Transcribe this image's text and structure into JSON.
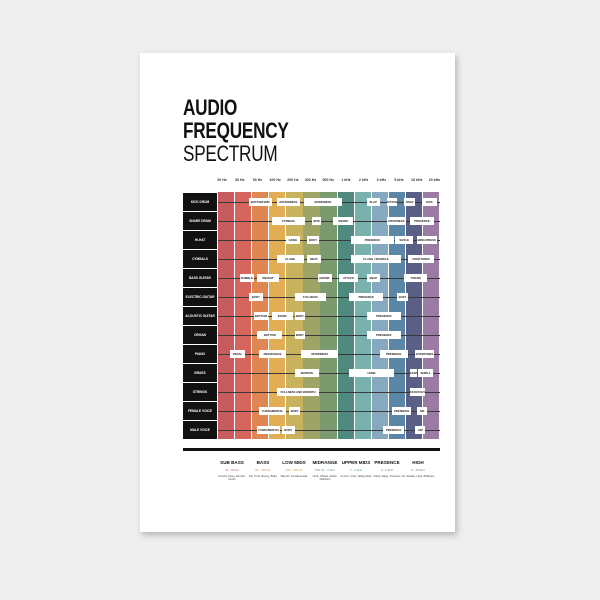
{
  "title": {
    "line1": "AUDIO",
    "line2": "FREQUENCY",
    "line3": "SPECTRUM"
  },
  "ticks": [
    "20 Hz",
    "30 Hz",
    "50 Hz",
    "100 Hz",
    "200 Hz",
    "300 Hz",
    "500 Hz",
    "1 kHz",
    "2 kHz",
    "3 kHz",
    "5 kHz",
    "10 kHz",
    "20 kHz"
  ],
  "tick_values_hz": [
    20,
    30,
    50,
    100,
    200,
    300,
    500,
    1000,
    2000,
    3000,
    5000,
    10000,
    20000
  ],
  "stripe_colors": [
    "#c95b5e",
    "#d6665c",
    "#de8752",
    "#e1ae55",
    "#c8b25e",
    "#9ea466",
    "#7b9a6e",
    "#4e8a7e",
    "#79b1ad",
    "#86a9bf",
    "#5b86a6",
    "#5a5f86",
    "#9b7aa3"
  ],
  "rows": [
    {
      "label": "Kick Drum",
      "blocks": [
        {
          "text": "Bottom End",
          "from": 39,
          "to": 87
        },
        {
          "text": "Roundness",
          "from": 107,
          "to": 236
        },
        {
          "text": "Muddiness",
          "from": 256,
          "to": 870
        },
        {
          "text": "Slap",
          "from": 2160,
          "to": 2880
        },
        {
          "text": "Attack",
          "from": 3500,
          "to": 4740
        },
        {
          "text": "Snap",
          "from": 6150,
          "to": 9350
        },
        {
          "text": "Hiss",
          "from": 12300,
          "to": 22000
        }
      ]
    },
    {
      "label": "Snare Drum",
      "blocks": [
        {
          "text": "Fatness",
          "from": 87,
          "to": 266
        },
        {
          "text": "Bite",
          "from": 315,
          "to": 408
        },
        {
          "text": "Snare",
          "from": 615,
          "to": 1320
        },
        {
          "text": "Crispness",
          "from": 3500,
          "to": 6600
        },
        {
          "text": "Presence",
          "from": 7600,
          "to": 20000
        }
      ]
    },
    {
      "label": "Hi-Hat",
      "blocks": [
        {
          "text": "Gong",
          "from": 152,
          "to": 236
        },
        {
          "text": "Body",
          "from": 276,
          "to": 387
        },
        {
          "text": "Presence",
          "from": 1230,
          "to": 4290
        },
        {
          "text": "Sizzle",
          "from": 4500,
          "to": 8700
        },
        {
          "text": "Brightness",
          "from": 10000,
          "to": 22000
        }
      ]
    },
    {
      "label": "Cymbals",
      "blocks": [
        {
          "text": "Clank",
          "from": 107,
          "to": 256
        },
        {
          "text": "Meat",
          "from": 276,
          "to": 408
        },
        {
          "text": "Clang / Sparkle",
          "from": 1230,
          "to": 5350
        },
        {
          "text": "Overtones",
          "from": 7050,
          "to": 20000
        }
      ]
    },
    {
      "label": "Bass Guitar",
      "blocks": [
        {
          "text": "Rumble",
          "from": 30,
          "to": 45
        },
        {
          "text": "Weight",
          "from": 50,
          "to": 115
        },
        {
          "text": "Growl",
          "from": 369,
          "to": 575
        },
        {
          "text": "Attack",
          "from": 760,
          "to": 1620
        },
        {
          "text": "Snap",
          "from": 2160,
          "to": 2880
        },
        {
          "text": "Twang",
          "from": 6150,
          "to": 15200
        }
      ]
    },
    {
      "label": "Electric Guitar",
      "blocks": [
        {
          "text": "Body",
          "from": 39,
          "to": 62
        },
        {
          "text": "Fullness",
          "from": 208,
          "to": 474
        },
        {
          "text": "Presence",
          "from": 1150,
          "to": 3150
        },
        {
          "text": "Buzz",
          "from": 4740,
          "to": 7050
        }
      ]
    },
    {
      "label": "Acoustic Guitar",
      "blocks": [
        {
          "text": "Bottom",
          "from": 45,
          "to": 76
        },
        {
          "text": "Boom",
          "from": 87,
          "to": 200
        },
        {
          "text": "Body",
          "from": 208,
          "to": 266
        },
        {
          "text": "Presence",
          "from": 2160,
          "to": 5350
        }
      ]
    },
    {
      "label": "Organ",
      "blocks": [
        {
          "text": "Bottom",
          "from": 50,
          "to": 132
        },
        {
          "text": "Body",
          "from": 208,
          "to": 266
        },
        {
          "text": "Presence",
          "from": 2160,
          "to": 5350
        }
      ]
    },
    {
      "label": "Piano",
      "blocks": [
        {
          "text": "Pedal",
          "from": 24,
          "to": 35
        },
        {
          "text": "Resonance",
          "from": 54,
          "to": 152
        },
        {
          "text": "Muddiness",
          "from": 244,
          "to": 735
        },
        {
          "text": "Presence",
          "from": 2880,
          "to": 7050
        },
        {
          "text": "Overtones",
          "from": 9350,
          "to": 20000
        }
      ]
    },
    {
      "label": "Brass",
      "blocks": [
        {
          "text": "Warmth",
          "from": 208,
          "to": 387
        },
        {
          "text": "Honk",
          "from": 1150,
          "to": 4290
        },
        {
          "text": "Rasp",
          "from": 7600,
          "to": 10000
        },
        {
          "text": "Shrill",
          "from": 10700,
          "to": 18700
        }
      ]
    },
    {
      "label": "Strings",
      "blocks": [
        {
          "text": "Fullness and Warmth",
          "from": 107,
          "to": 387
        },
        {
          "text": "Scratchy",
          "from": 7600,
          "to": 14100
        }
      ]
    },
    {
      "label": "Female Voice",
      "blocks": [
        {
          "text": "Fundamental",
          "from": 54,
          "to": 152
        },
        {
          "text": "Body",
          "from": 174,
          "to": 236
        },
        {
          "text": "Presence",
          "from": 4080,
          "to": 8100
        },
        {
          "text": "Air",
          "from": 10000,
          "to": 15200
        }
      ]
    },
    {
      "label": "Male Voice",
      "blocks": [
        {
          "text": "Fundamental",
          "from": 50,
          "to": 123
        },
        {
          "text": "Body",
          "from": 132,
          "to": 208
        },
        {
          "text": "Presence",
          "from": 3150,
          "to": 6150
        },
        {
          "text": "Air",
          "from": 9350,
          "to": 14100
        }
      ]
    }
  ],
  "bands": [
    {
      "name": "SUB BASS",
      "range": "20 - 60 Hz",
      "desc": "Punchy, Deep, Rumble, Depth",
      "color": "#c95b5e"
    },
    {
      "name": "BASS",
      "range": "60 - 250 Hz",
      "desc": "Fat, Thud, Boomy, Bulky",
      "color": "#de8752"
    },
    {
      "name": "LOW MIDS",
      "range": "250 - 500 Hz",
      "desc": "Warmth, Fundamentals",
      "color": "#c8a23e"
    },
    {
      "name": "MIDRANGE",
      "range": "500 Hz - 2 kHz",
      "desc": "Honk, Whack, Attack, Definition",
      "color": "#6f9a6e"
    },
    {
      "name": "UPPER MIDS",
      "range": "2 - 4 kHz",
      "desc": "Crunch, Crisp, Talking Rain",
      "color": "#4e9a9e"
    },
    {
      "name": "PRESENCE",
      "range": "4 - 6 kHz",
      "desc": "Clarity, Edge, Presence",
      "color": "#5b86a6"
    },
    {
      "name": "HIGH",
      "range": "6 - 20 kHz",
      "desc": "Air, Sparkle, Light, Brilliance",
      "color": "#8a6a96"
    }
  ]
}
